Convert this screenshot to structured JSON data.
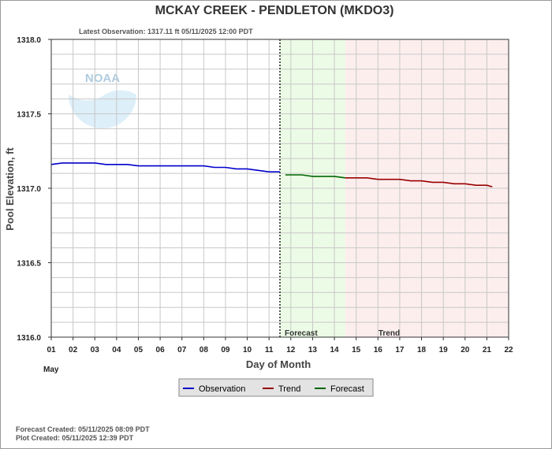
{
  "chart_data": {
    "type": "line",
    "title": "MCKAY CREEK - PENDLETON  (MKDO3)",
    "latest_observation": "Latest Observation: 1317.11 ft 05/11/2025 12:00 PDT",
    "xlabel": "Day of Month",
    "month_label": "May",
    "ylabel": "Pool Elevation, ft",
    "xlim": [
      1,
      22
    ],
    "ylim": [
      1316.0,
      1318.0
    ],
    "x_ticks": [
      "01",
      "02",
      "03",
      "04",
      "05",
      "06",
      "07",
      "08",
      "09",
      "10",
      "11",
      "12",
      "13",
      "14",
      "15",
      "16",
      "17",
      "18",
      "19",
      "20",
      "21",
      "22"
    ],
    "y_ticks": [
      "1316.0",
      "1316.5",
      "1317.0",
      "1317.5",
      "1318.0"
    ],
    "y_tick_values": [
      1316.0,
      1316.5,
      1317.0,
      1317.5,
      1318.0
    ],
    "current_time_day": 11.5,
    "regions": [
      {
        "label": "Forecast",
        "start": 11.5,
        "end": 14.5,
        "color": "#ecfbe6"
      },
      {
        "label": "Trend",
        "start": 14.5,
        "end": 22,
        "color": "#fdeeee"
      }
    ],
    "grid": true,
    "legend_position": "bottom-center",
    "series": [
      {
        "name": "Observation",
        "color": "#0000cc",
        "x": [
          1.0,
          1.5,
          2.0,
          2.5,
          3.0,
          3.5,
          4.0,
          4.5,
          5.0,
          5.5,
          6.0,
          6.5,
          7.0,
          7.5,
          8.0,
          8.5,
          9.0,
          9.5,
          10.0,
          10.5,
          11.0,
          11.5
        ],
        "y": [
          1317.16,
          1317.17,
          1317.17,
          1317.17,
          1317.17,
          1317.16,
          1317.16,
          1317.16,
          1317.15,
          1317.15,
          1317.15,
          1317.15,
          1317.15,
          1317.15,
          1317.15,
          1317.14,
          1317.14,
          1317.13,
          1317.13,
          1317.12,
          1317.11,
          1317.11
        ]
      },
      {
        "name": "Forecast",
        "color": "#006600",
        "x": [
          11.75,
          12.5,
          13.0,
          13.5,
          14.0,
          14.5
        ],
        "y": [
          1317.09,
          1317.09,
          1317.08,
          1317.08,
          1317.08,
          1317.07
        ]
      },
      {
        "name": "Trend",
        "color": "#990000",
        "x": [
          14.5,
          15.0,
          15.5,
          16.0,
          16.5,
          17.0,
          17.5,
          18.0,
          18.5,
          19.0,
          19.5,
          20.0,
          20.5,
          21.0,
          21.25
        ],
        "y": [
          1317.07,
          1317.07,
          1317.07,
          1317.06,
          1317.06,
          1317.06,
          1317.05,
          1317.05,
          1317.04,
          1317.04,
          1317.03,
          1317.03,
          1317.02,
          1317.02,
          1317.01
        ]
      }
    ]
  },
  "footer": {
    "forecast_created": "Forecast Created: 05/11/2025 08:09 PDT",
    "plot_created": "Plot Created: 05/11/2025 12:39 PDT"
  },
  "logo": {
    "text": "NOAA",
    "icon": "noaa-logo-icon"
  }
}
